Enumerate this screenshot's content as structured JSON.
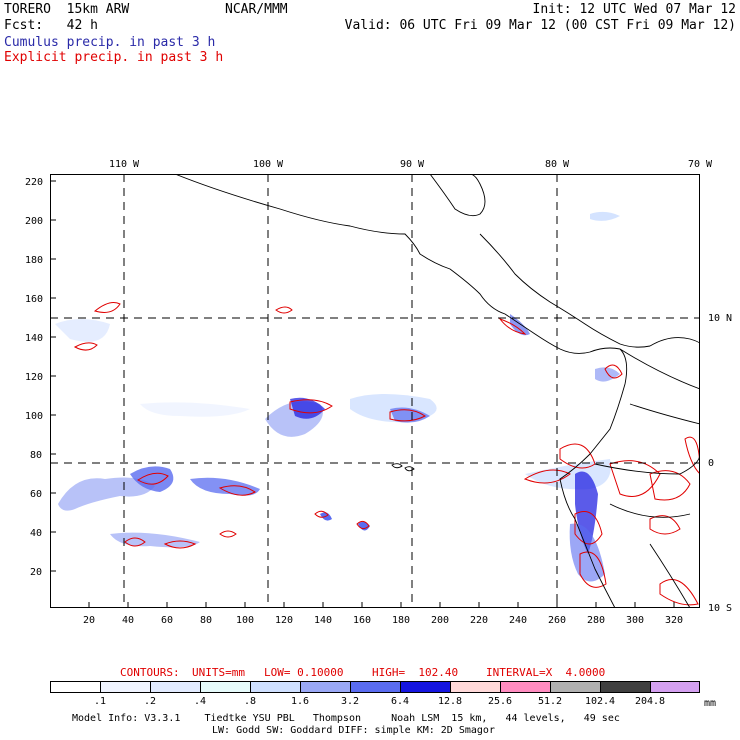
{
  "header": {
    "model": "TORERO  15km ARW",
    "org": "NCAR/MMM",
    "init": "Init: 12 UTC Wed 07 Mar 12",
    "fcst": "Fcst:   42 h",
    "valid": "Valid: 06 UTC Fri 09 Mar 12 (00 CST Fri 09 Mar 12)",
    "field1": "Cumulus precip. in past 3 h",
    "field2": "Explicit precip. in past 3 h"
  },
  "map": {
    "lon_labels": [
      "110 W",
      "100 W",
      "90 W",
      "80 W",
      "70 W"
    ],
    "lat_labels": [
      "10 N",
      "0",
      "10 S"
    ],
    "y_ticks": [
      "220",
      "200",
      "180",
      "160",
      "140",
      "120",
      "100",
      "80",
      "60",
      "40",
      "20"
    ],
    "x_ticks": [
      "20",
      "40",
      "60",
      "80",
      "100",
      "120",
      "140",
      "160",
      "180",
      "200",
      "220",
      "240",
      "260",
      "280",
      "300",
      "320"
    ]
  },
  "contour_info": {
    "contours": "CONTOURS:",
    "units": "UNITS=mm",
    "low": "LOW= 0.10000",
    "high": "HIGH=  102.40",
    "interval": "INTERVAL=X  4.0000"
  },
  "legend": {
    "labels": [
      ".1",
      ".2",
      ".4",
      ".8",
      "1.6",
      "3.2",
      "6.4",
      "12.8",
      "25.6",
      "51.2",
      "102.4",
      "204.8"
    ],
    "unit": "mm",
    "colors": [
      "#ffffff",
      "#f0f4ff",
      "#e2ebff",
      "#e6fbfb",
      "#cfe0ff",
      "#9aa8f5",
      "#5a6cf0",
      "#1515e0",
      "#ffd9d9",
      "#ff8cc0",
      "#b0b0b0",
      "#404040",
      "#d4a0f0"
    ]
  },
  "footer": {
    "line1": "Model Info: V3.3.1    Tiedtke YSU PBL   Thompson     Noah LSM  15 km,   44 levels,   49 sec",
    "line2": "LW: Godd SW: Goddard DIFF: simple KM: 2D Smagor"
  }
}
